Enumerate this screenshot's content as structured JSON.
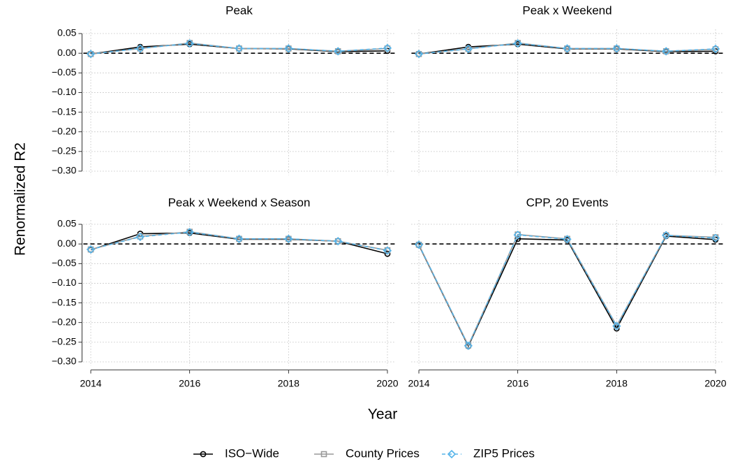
{
  "xlabel": "Year",
  "ylabel": "Renormalized R2",
  "legend": "bottom",
  "chart_data": [
    {
      "type": "line",
      "title": "Peak",
      "x": [
        2014,
        2015,
        2016,
        2017,
        2018,
        2019,
        2020
      ],
      "xlim": [
        2013.85,
        2020.15
      ],
      "xticks": [
        2014,
        2016,
        2018,
        2020
      ],
      "ylim": [
        -0.31,
        0.06
      ],
      "yticks": [
        {
          "value": 0.05,
          "label": "0.05"
        },
        {
          "value": 0,
          "label": "0.00"
        },
        {
          "value": -0.05,
          "label": "−0.05"
        },
        {
          "value": -0.1,
          "label": "−0.10"
        },
        {
          "value": -0.15,
          "label": "−0.15"
        },
        {
          "value": -0.2,
          "label": "−0.20"
        },
        {
          "value": -0.25,
          "label": "−0.25"
        },
        {
          "value": -0.3,
          "label": "−0.30"
        }
      ],
      "grid": true,
      "reference_line": 0,
      "series": [
        {
          "name": "ISO−Wide",
          "color": "#000000",
          "marker": "circle",
          "linestyle": "solid",
          "values": [
            -0.002,
            0.016,
            0.023,
            0.012,
            0.011,
            0.004,
            0.006
          ]
        },
        {
          "name": "County Prices",
          "color": "#999999",
          "marker": "square",
          "linestyle": "solid",
          "values": [
            -0.002,
            0.012,
            0.026,
            0.012,
            0.012,
            0.005,
            0.012
          ]
        },
        {
          "name": "ZIP5 Prices",
          "color": "#56b4e9",
          "marker": "diamond",
          "linestyle": "dashed",
          "values": [
            -0.002,
            0.012,
            0.025,
            0.012,
            0.012,
            0.005,
            0.013
          ]
        }
      ]
    },
    {
      "type": "line",
      "title": "Peak x Weekend",
      "x": [
        2014,
        2015,
        2016,
        2017,
        2018,
        2019,
        2020
      ],
      "xlim": [
        2013.85,
        2020.15
      ],
      "xticks": [
        2014,
        2016,
        2018,
        2020
      ],
      "ylim": [
        -0.31,
        0.06
      ],
      "yticks": [
        {
          "value": 0.05,
          "label": "0.05"
        },
        {
          "value": 0,
          "label": "0.00"
        },
        {
          "value": -0.05,
          "label": "−0.05"
        },
        {
          "value": -0.1,
          "label": "−0.10"
        },
        {
          "value": -0.15,
          "label": "−0.15"
        },
        {
          "value": -0.2,
          "label": "−0.20"
        },
        {
          "value": -0.25,
          "label": "−0.25"
        },
        {
          "value": -0.3,
          "label": "−0.30"
        }
      ],
      "grid": true,
      "reference_line": 0,
      "series": [
        {
          "name": "ISO−Wide",
          "color": "#000000",
          "marker": "circle",
          "linestyle": "solid",
          "values": [
            -0.002,
            0.016,
            0.023,
            0.011,
            0.011,
            0.004,
            0.005
          ]
        },
        {
          "name": "County Prices",
          "color": "#999999",
          "marker": "square",
          "linestyle": "solid",
          "values": [
            -0.002,
            0.011,
            0.026,
            0.012,
            0.012,
            0.005,
            0.01
          ]
        },
        {
          "name": "ZIP5 Prices",
          "color": "#56b4e9",
          "marker": "diamond",
          "linestyle": "dashed",
          "values": [
            -0.002,
            0.011,
            0.025,
            0.012,
            0.012,
            0.005,
            0.011
          ]
        }
      ]
    },
    {
      "type": "line",
      "title": "Peak x Weekend x Season",
      "x": [
        2014,
        2015,
        2016,
        2017,
        2018,
        2019,
        2020
      ],
      "xlim": [
        2013.85,
        2020.15
      ],
      "xticks": [
        2014,
        2016,
        2018,
        2020
      ],
      "ylim": [
        -0.31,
        0.06
      ],
      "yticks": [
        {
          "value": 0.05,
          "label": "0.05"
        },
        {
          "value": 0,
          "label": "0.00"
        },
        {
          "value": -0.05,
          "label": "−0.05"
        },
        {
          "value": -0.1,
          "label": "−0.10"
        },
        {
          "value": -0.15,
          "label": "−0.15"
        },
        {
          "value": -0.2,
          "label": "−0.20"
        },
        {
          "value": -0.25,
          "label": "−0.25"
        },
        {
          "value": -0.3,
          "label": "−0.30"
        }
      ],
      "grid": true,
      "reference_line": 0,
      "series": [
        {
          "name": "ISO−Wide",
          "color": "#000000",
          "marker": "circle",
          "linestyle": "solid",
          "values": [
            -0.015,
            0.026,
            0.028,
            0.012,
            0.012,
            0.007,
            -0.025
          ]
        },
        {
          "name": "County Prices",
          "color": "#999999",
          "marker": "square",
          "linestyle": "solid",
          "values": [
            -0.014,
            0.019,
            0.031,
            0.013,
            0.013,
            0.007,
            -0.016
          ]
        },
        {
          "name": "ZIP5 Prices",
          "color": "#56b4e9",
          "marker": "diamond",
          "linestyle": "dashed",
          "values": [
            -0.014,
            0.018,
            0.03,
            0.013,
            0.013,
            0.007,
            -0.017
          ]
        }
      ]
    },
    {
      "type": "line",
      "title": "CPP, 20 Events",
      "x": [
        2014,
        2015,
        2016,
        2017,
        2018,
        2019,
        2020
      ],
      "xlim": [
        2013.85,
        2020.15
      ],
      "xticks": [
        2014,
        2016,
        2018,
        2020
      ],
      "ylim": [
        -0.31,
        0.06
      ],
      "yticks": [
        {
          "value": 0.05,
          "label": "0.05"
        },
        {
          "value": 0,
          "label": "0.00"
        },
        {
          "value": -0.05,
          "label": "−0.05"
        },
        {
          "value": -0.1,
          "label": "−0.10"
        },
        {
          "value": -0.15,
          "label": "−0.15"
        },
        {
          "value": -0.2,
          "label": "−0.20"
        },
        {
          "value": -0.25,
          "label": "−0.25"
        },
        {
          "value": -0.3,
          "label": "−0.30"
        }
      ],
      "grid": true,
      "reference_line": 0,
      "series": [
        {
          "name": "ISO−Wide",
          "color": "#000000",
          "marker": "circle",
          "linestyle": "solid",
          "values": [
            -0.003,
            -0.26,
            0.013,
            0.01,
            -0.215,
            0.02,
            0.011
          ]
        },
        {
          "name": "County Prices",
          "color": "#999999",
          "marker": "square",
          "linestyle": "solid",
          "values": [
            -0.002,
            -0.258,
            0.024,
            0.013,
            -0.208,
            0.022,
            0.017
          ]
        },
        {
          "name": "ZIP5 Prices",
          "color": "#56b4e9",
          "marker": "diamond",
          "linestyle": "dashed",
          "values": [
            -0.002,
            -0.259,
            0.023,
            0.012,
            -0.209,
            0.022,
            0.015
          ]
        }
      ]
    }
  ]
}
